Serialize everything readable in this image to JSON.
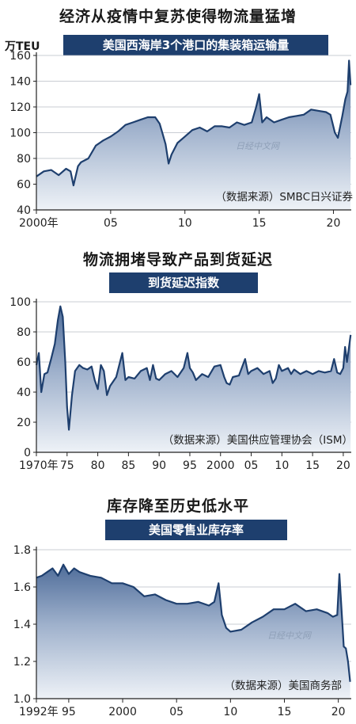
{
  "chart_data": [
    {
      "type": "area",
      "title": "经济从疫情中复苏使得物流量猛增",
      "subtitle": "美国西海岸3个港口的集装箱运输量",
      "ylabel": "万TEU",
      "source": "（数据来源）SMBC日兴证券",
      "watermark": "日经中文网",
      "ylim": [
        40,
        160
      ],
      "yticks": [
        40,
        60,
        80,
        100,
        120,
        140,
        160
      ],
      "xlim": [
        2000,
        2021.2
      ],
      "xticks": [
        {
          "v": 2000,
          "label": "2000年"
        },
        {
          "v": 2005,
          "label": "05"
        },
        {
          "v": 2010,
          "label": "10"
        },
        {
          "v": 2015,
          "label": "15"
        },
        {
          "v": 2020,
          "label": "20"
        }
      ],
      "x": [
        2000.0,
        2000.5,
        2001.0,
        2001.5,
        2002.0,
        2002.3,
        2002.5,
        2002.8,
        2003.0,
        2003.5,
        2004.0,
        2004.5,
        2005.0,
        2005.5,
        2006.0,
        2006.5,
        2007.0,
        2007.5,
        2008.0,
        2008.3,
        2008.5,
        2008.7,
        2008.9,
        2009.1,
        2009.5,
        2010.0,
        2010.5,
        2011.0,
        2011.5,
        2012.0,
        2012.5,
        2013.0,
        2013.5,
        2014.0,
        2014.5,
        2014.8,
        2015.0,
        2015.2,
        2015.5,
        2016.0,
        2016.5,
        2017.0,
        2017.5,
        2018.0,
        2018.5,
        2019.0,
        2019.5,
        2019.8,
        2020.1,
        2020.3,
        2020.6,
        2020.8,
        2020.95,
        2021.05,
        2021.15
      ],
      "values": [
        66,
        70,
        71,
        67,
        72,
        70,
        59,
        74,
        77,
        80,
        90,
        94,
        97,
        101,
        106,
        108,
        110,
        112,
        112,
        107,
        99,
        91,
        76,
        83,
        92,
        97,
        102,
        104,
        101,
        105,
        105,
        104,
        108,
        106,
        108,
        120,
        130,
        108,
        112,
        108,
        110,
        112,
        113,
        114,
        118,
        117,
        116,
        114,
        100,
        96,
        113,
        126,
        132,
        156,
        137
      ]
    },
    {
      "type": "area",
      "title": "物流拥堵导致产品到货延迟",
      "subtitle": "到货延迟指数",
      "source": "（数据来源）美国供应管理协会（ISM）",
      "ylim": [
        0,
        100
      ],
      "yticks": [
        0,
        20,
        40,
        60,
        80,
        100
      ],
      "xlim": [
        1970,
        2021.3
      ],
      "xticks": [
        {
          "v": 1970,
          "label": "1970年"
        },
        {
          "v": 1975,
          "label": "75"
        },
        {
          "v": 1980,
          "label": "80"
        },
        {
          "v": 1985,
          "label": "85"
        },
        {
          "v": 1990,
          "label": "90"
        },
        {
          "v": 1995,
          "label": "95"
        },
        {
          "v": 2000,
          "label": "2000"
        },
        {
          "v": 2005,
          "label": "05"
        },
        {
          "v": 2010,
          "label": "10"
        },
        {
          "v": 2015,
          "label": "15"
        },
        {
          "v": 2020,
          "label": "20"
        }
      ],
      "x": [
        1970.0,
        1970.4,
        1970.8,
        1971.3,
        1971.8,
        1972.4,
        1973.0,
        1973.5,
        1973.9,
        1974.3,
        1974.7,
        1975.0,
        1975.3,
        1975.8,
        1976.3,
        1977.0,
        1977.6,
        1978.3,
        1979.0,
        1979.5,
        1980.0,
        1980.5,
        1981.0,
        1981.5,
        1982.0,
        1983.0,
        1984.0,
        1984.5,
        1985.0,
        1986.0,
        1987.0,
        1988.0,
        1988.5,
        1989.0,
        1989.5,
        1990.0,
        1991.0,
        1992.0,
        1993.0,
        1994.0,
        1994.6,
        1995.0,
        1995.5,
        1996.0,
        1997.0,
        1998.0,
        1999.0,
        2000.0,
        2000.6,
        2001.0,
        2001.5,
        2002.0,
        2003.0,
        2004.0,
        2004.5,
        2005.0,
        2006.0,
        2007.0,
        2008.0,
        2008.5,
        2009.0,
        2009.5,
        2010.0,
        2011.0,
        2011.5,
        2012.0,
        2013.0,
        2014.0,
        2015.0,
        2016.0,
        2017.0,
        2018.0,
        2018.5,
        2019.0,
        2019.5,
        2020.0,
        2020.3,
        2020.6,
        2021.0,
        2021.2
      ],
      "values": [
        58,
        66,
        40,
        52,
        53,
        62,
        72,
        88,
        97,
        90,
        60,
        30,
        15,
        38,
        54,
        58,
        56,
        55,
        57,
        48,
        42,
        58,
        54,
        38,
        44,
        50,
        66,
        48,
        50,
        49,
        54,
        56,
        48,
        58,
        49,
        48,
        52,
        54,
        50,
        56,
        66,
        56,
        53,
        48,
        52,
        50,
        57,
        58,
        50,
        46,
        45,
        50,
        51,
        62,
        52,
        54,
        56,
        52,
        54,
        46,
        49,
        58,
        54,
        56,
        52,
        55,
        52,
        54,
        52,
        54,
        53,
        54,
        62,
        53,
        52,
        56,
        70,
        60,
        72,
        78
      ]
    },
    {
      "type": "area",
      "title": "库存降至历史低水平",
      "subtitle": "美国零售业库存率",
      "source": "（数据来源）美国商务部",
      "watermark": "日经中文网",
      "ylim": [
        1.0,
        1.8
      ],
      "yticks": [
        1.0,
        1.2,
        1.4,
        1.6,
        1.8
      ],
      "xlim": [
        1992,
        2021.2
      ],
      "xticks": [
        {
          "v": 1992,
          "label": "1992年"
        },
        {
          "v": 1995,
          "label": "95"
        },
        {
          "v": 2000,
          "label": "2000"
        },
        {
          "v": 2005,
          "label": "05"
        },
        {
          "v": 2010,
          "label": "10"
        },
        {
          "v": 2015,
          "label": "15"
        },
        {
          "v": 2020,
          "label": "20"
        }
      ],
      "x": [
        1992.0,
        1992.5,
        1993.0,
        1993.5,
        1994.0,
        1994.5,
        1995.0,
        1995.5,
        1996.0,
        1997.0,
        1998.0,
        1999.0,
        2000.0,
        2001.0,
        2002.0,
        2003.0,
        2004.0,
        2005.0,
        2006.0,
        2007.0,
        2008.0,
        2008.5,
        2008.9,
        2009.2,
        2009.6,
        2010.0,
        2011.0,
        2012.0,
        2013.0,
        2014.0,
        2015.0,
        2016.0,
        2017.0,
        2018.0,
        2019.0,
        2019.5,
        2019.9,
        2020.1,
        2020.3,
        2020.5,
        2020.7,
        2020.9,
        2021.1
      ],
      "values": [
        1.65,
        1.66,
        1.68,
        1.7,
        1.66,
        1.72,
        1.67,
        1.7,
        1.68,
        1.66,
        1.65,
        1.62,
        1.62,
        1.6,
        1.55,
        1.56,
        1.53,
        1.51,
        1.51,
        1.52,
        1.5,
        1.52,
        1.62,
        1.45,
        1.38,
        1.36,
        1.37,
        1.41,
        1.44,
        1.48,
        1.48,
        1.51,
        1.47,
        1.48,
        1.46,
        1.44,
        1.45,
        1.67,
        1.48,
        1.28,
        1.27,
        1.2,
        1.09
      ]
    }
  ]
}
